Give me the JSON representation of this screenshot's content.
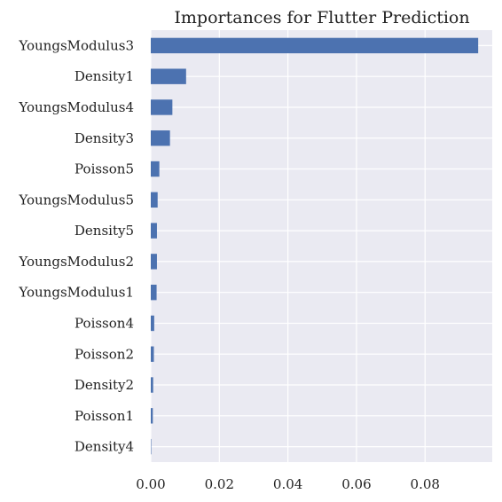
{
  "chart_data": {
    "type": "bar",
    "orientation": "horizontal",
    "title": "Importances for Flutter Prediction",
    "xlabel": "",
    "ylabel": "",
    "categories": [
      "YoungsModulus3",
      "Density1",
      "YoungsModulus4",
      "Density3",
      "Poisson5",
      "YoungsModulus5",
      "Density5",
      "YoungsModulus2",
      "YoungsModulus1",
      "Poisson4",
      "Poisson2",
      "Density2",
      "Poisson1",
      "Density4"
    ],
    "values": [
      0.0955,
      0.0103,
      0.0063,
      0.0056,
      0.0025,
      0.002,
      0.0018,
      0.0018,
      0.0017,
      0.001,
      0.0009,
      0.0007,
      0.0006,
      0.0001
    ],
    "xlim": [
      0,
      0.0996
    ],
    "xticks": [
      0.0,
      0.02,
      0.04,
      0.06,
      0.08
    ],
    "xtick_labels": [
      "0.00",
      "0.02",
      "0.04",
      "0.06",
      "0.08"
    ],
    "grid": true,
    "legend": "none",
    "colors": {
      "bar": "#4c72b0",
      "background": "#eaeaf2",
      "grid": "#ffffff"
    }
  }
}
